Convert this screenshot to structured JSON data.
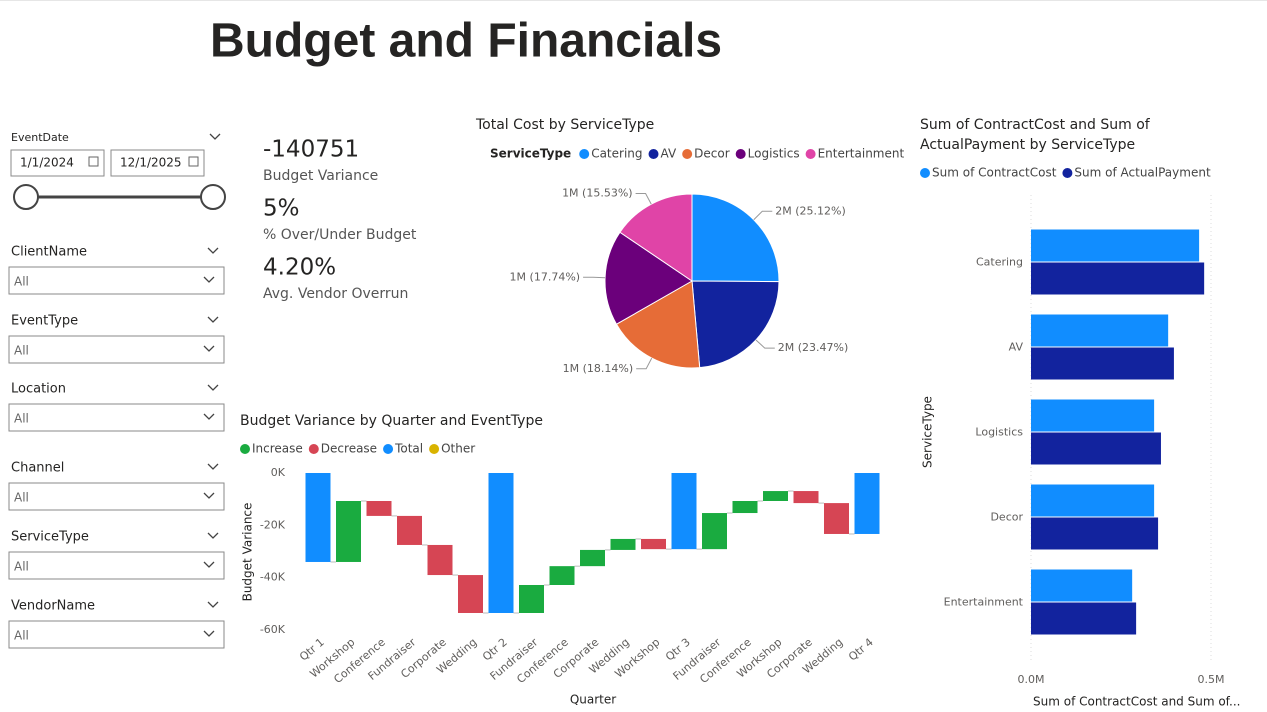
{
  "header": {
    "title": "Budget and Financials"
  },
  "slicers": {
    "date": {
      "label": "EventDate",
      "start": "1/1/2024",
      "end": "12/1/2025"
    },
    "dropdowns": [
      {
        "label": "ClientName",
        "value": "All"
      },
      {
        "label": "EventType",
        "value": "All"
      },
      {
        "label": "Location",
        "value": "All"
      },
      {
        "label": "Channel",
        "value": "All"
      },
      {
        "label": "ServiceType",
        "value": "All"
      },
      {
        "label": "VendorName",
        "value": "All"
      }
    ]
  },
  "kpis": [
    {
      "value": "-140751",
      "label": "Budget Variance"
    },
    {
      "value": "5%",
      "label": "% Over/Under Budget"
    },
    {
      "value": "4.20%",
      "label": "Avg. Vendor Overrun"
    }
  ],
  "chart_data": [
    {
      "type": "pie",
      "title": "Total Cost by ServiceType",
      "legend_title": "ServiceType",
      "categories": [
        "Catering",
        "AV",
        "Decor",
        "Logistics",
        "Entertainment"
      ],
      "values": [
        25.12,
        23.47,
        18.14,
        17.74,
        15.53
      ],
      "value_labels": [
        "2M (25.12%)",
        "2M (23.47%)",
        "1M (18.14%)",
        "1M (17.74%)",
        "1M (15.53%)"
      ],
      "colors": [
        "#118DFF",
        "#12239E",
        "#E66C37",
        "#6B007B",
        "#E044A7"
      ]
    },
    {
      "type": "waterfall",
      "title": "Budget Variance by Quarter and EventType",
      "x_label": "Quarter",
      "y_label": "Budget Variance",
      "legend": [
        {
          "name": "Increase",
          "color": "#1AAB40"
        },
        {
          "name": "Decrease",
          "color": "#D64554"
        },
        {
          "name": "Total",
          "color": "#118DFF"
        },
        {
          "name": "Other",
          "color": "#D9B300"
        }
      ],
      "categories": [
        "Qtr 1",
        "Workshop",
        "Conference",
        "Fundraiser",
        "Corporate",
        "Wedding",
        "Qtr 2",
        "Fundraiser",
        "Conference",
        "Corporate",
        "Wedding",
        "Workshop",
        "Qtr 3",
        "Fundraiser",
        "Conference",
        "Workshop",
        "Corporate",
        "Wedding",
        "Qtr 4"
      ],
      "values": [
        -34000,
        23300,
        -5700,
        -11100,
        -11500,
        -14500,
        -53500,
        10700,
        7200,
        6200,
        4200,
        -3900,
        -29100,
        13800,
        4600,
        3800,
        -4600,
        -11800,
        -23300
      ],
      "kinds": [
        "Total",
        "Increase",
        "Decrease",
        "Decrease",
        "Decrease",
        "Decrease",
        "Total",
        "Increase",
        "Increase",
        "Increase",
        "Increase",
        "Decrease",
        "Total",
        "Increase",
        "Increase",
        "Increase",
        "Decrease",
        "Decrease",
        "Total"
      ],
      "ylim": [
        -60000,
        0
      ],
      "yticks": [
        {
          "value": 0,
          "label": "0K"
        },
        {
          "value": -20000,
          "label": "-20K"
        },
        {
          "value": -40000,
          "label": "-40K"
        },
        {
          "value": -60000,
          "label": "-60K"
        }
      ]
    },
    {
      "type": "bar",
      "orientation": "horizontal",
      "title": "Sum of ContractCost and Sum of ActualPayment by ServiceType",
      "x_label": "Sum of ContractCost and Sum of...",
      "y_label": "ServiceType",
      "categories": [
        "Catering",
        "AV",
        "Logistics",
        "Decor",
        "Entertainment"
      ],
      "series": [
        {
          "name": "Sum of ContractCost",
          "color": "#118DFF",
          "values": [
            467000,
            381000,
            342000,
            342000,
            281000
          ]
        },
        {
          "name": "Sum of ActualPayment",
          "color": "#12239E",
          "values": [
            481000,
            397000,
            361000,
            353000,
            292000
          ]
        }
      ],
      "xlim": [
        0,
        600000
      ],
      "xticks": [
        {
          "value": 0,
          "label": "0.0M"
        },
        {
          "value": 500000,
          "label": "0.5M"
        }
      ]
    }
  ]
}
